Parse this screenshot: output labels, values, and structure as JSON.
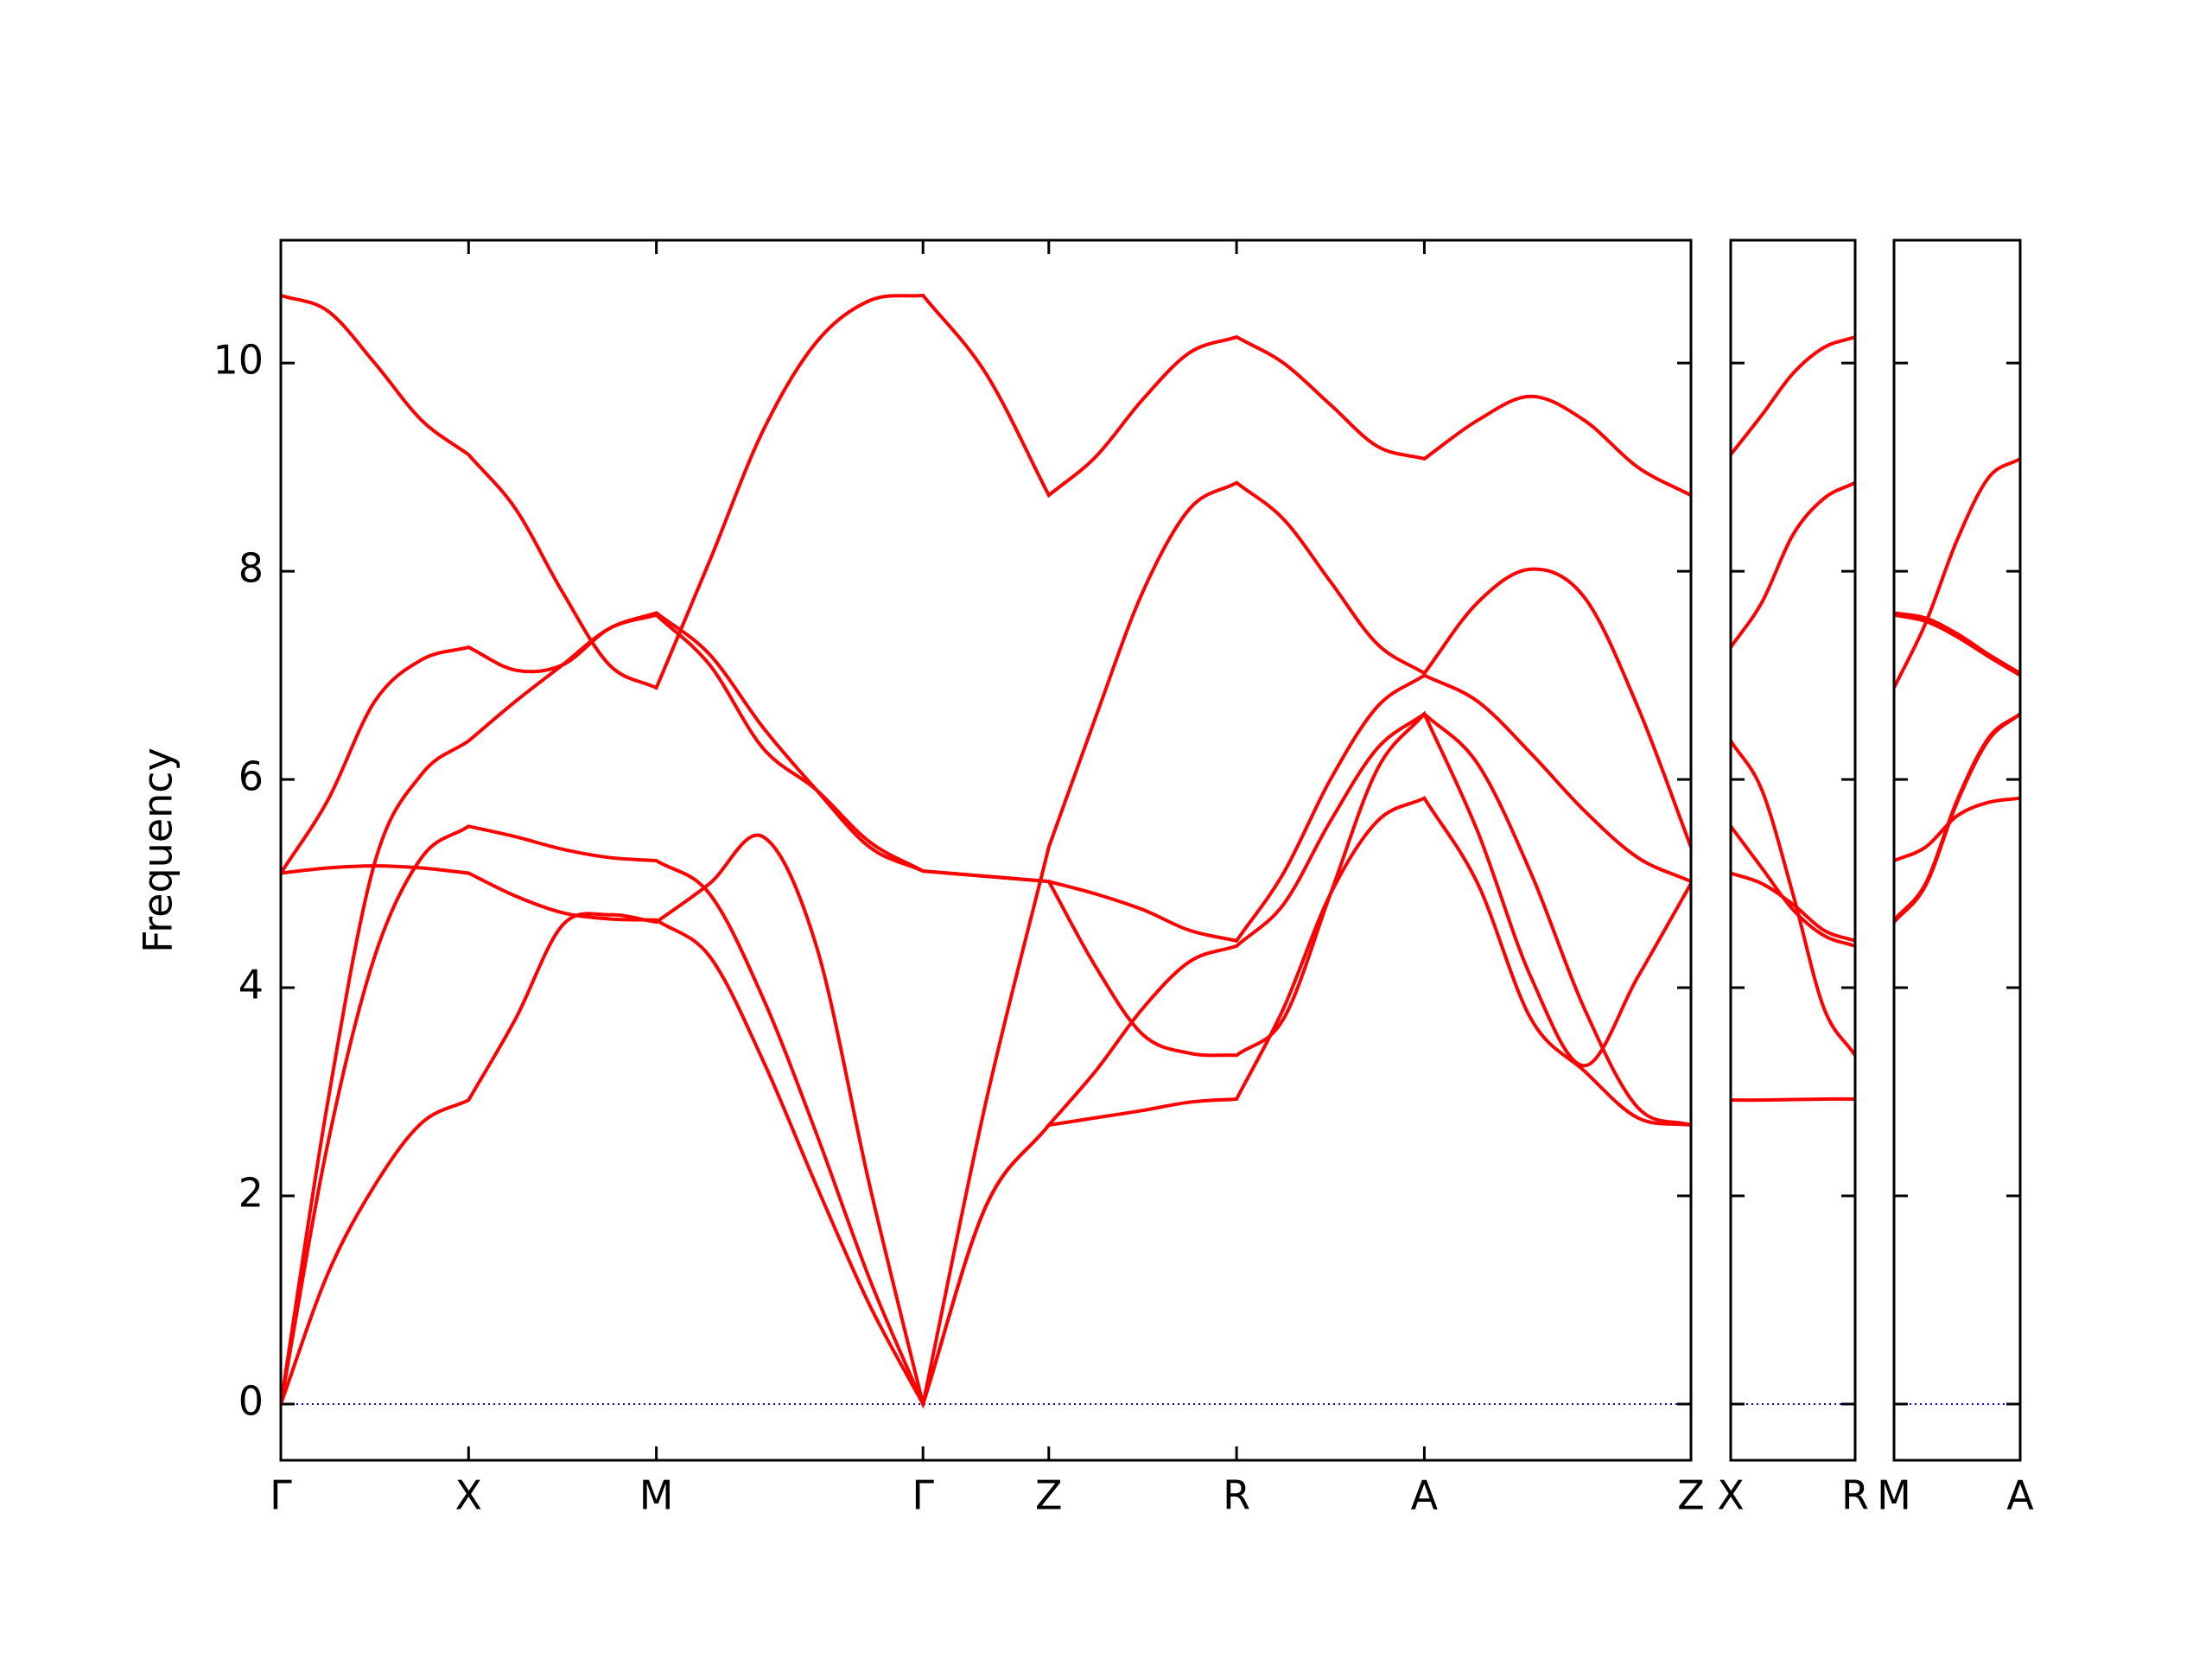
{
  "chart_data": [
    {
      "type": "line",
      "ylabel": "Frequency",
      "ytick_labels": true,
      "zero_line_color": "#0000ff",
      "x": [
        0,
        0.25,
        0.5,
        0.75,
        1.0,
        1.25,
        1.5,
        1.75,
        2.0,
        2.284,
        2.568,
        2.852,
        3.136,
        3.42,
        3.755,
        4.09,
        4.34,
        4.59,
        4.84,
        5.09,
        5.34,
        5.59,
        5.84,
        6.09,
        6.374,
        6.658,
        6.942,
        7.226,
        7.51
      ],
      "xlim": [
        0,
        7.51
      ],
      "xticks": [
        {
          "value": 0,
          "label": "Γ"
        },
        {
          "value": 1.0,
          "label": "X"
        },
        {
          "value": 2.0,
          "label": "M"
        },
        {
          "value": 3.42,
          "label": "Γ"
        },
        {
          "value": 4.09,
          "label": "Z"
        },
        {
          "value": 5.09,
          "label": "R"
        },
        {
          "value": 6.09,
          "label": "A"
        },
        {
          "value": 7.51,
          "label": "Z"
        }
      ],
      "ylim": [
        -0.54,
        11.18
      ],
      "yticks": [
        0,
        2,
        4,
        6,
        8,
        10
      ],
      "series": [
        {
          "color": "#ff0000",
          "values": [
            0,
            1.25,
            2.1,
            2.7,
            2.92,
            3.7,
            4.6,
            4.7,
            4.63,
            5.0,
            5.45,
            4.4,
            2.1,
            0,
            2.9,
            5.35,
            6.6,
            7.8,
            8.6,
            8.85,
            8.5,
            7.9,
            7.3,
            7.02,
            7.7,
            8.02,
            7.75,
            6.7,
            5.35
          ]
        },
        {
          "color": "#ff0000",
          "values": [
            0,
            2.5,
            4.3,
            5.25,
            5.55,
            5.45,
            5.33,
            5.25,
            5.22,
            4.9,
            3.9,
            2.6,
            1.2,
            0,
            1.9,
            2.68,
            3.2,
            3.8,
            4.25,
            4.4,
            4.8,
            5.6,
            6.3,
            6.63,
            6.15,
            5.1,
            3.8,
            2.85,
            2.68
          ]
        },
        {
          "color": "#ff0000",
          "values": [
            0,
            2.9,
            5.2,
            6.05,
            6.37,
            6.75,
            7.1,
            7.45,
            7.58,
            7.1,
            6.3,
            5.9,
            5.4,
            5.12,
            5.07,
            5.02,
            4.2,
            3.55,
            3.37,
            3.35,
            3.7,
            4.9,
            6.1,
            6.63,
            5.5,
            4.1,
            3.25,
            4.1,
            5.0
          ]
        },
        {
          "color": "#ff0000",
          "values": [
            5.1,
            5.15,
            5.17,
            5.15,
            5.1,
            4.88,
            4.72,
            4.66,
            4.65,
            4.3,
            3.3,
            2.1,
            0.95,
            0,
            1.9,
            2.68,
            2.75,
            2.82,
            2.9,
            2.93,
            3.8,
            4.9,
            5.6,
            5.82,
            5.0,
            3.7,
            3.2,
            2.75,
            2.68
          ]
        },
        {
          "color": "#ff0000",
          "values": [
            5.1,
            5.8,
            6.75,
            7.15,
            7.27,
            7.05,
            7.1,
            7.45,
            7.6,
            7.2,
            6.5,
            5.9,
            5.35,
            5.12,
            5.07,
            5.02,
            4.9,
            4.75,
            4.55,
            4.45,
            5.1,
            6.0,
            6.7,
            7.0,
            6.75,
            6.25,
            5.7,
            5.25,
            5.02
          ]
        },
        {
          "color": "#ff0000",
          "values": [
            10.65,
            10.5,
            10.0,
            9.45,
            9.12,
            8.6,
            7.8,
            7.1,
            6.88,
            8.1,
            9.35,
            10.2,
            10.6,
            10.65,
            9.9,
            8.73,
            9.1,
            9.65,
            10.1,
            10.25,
            10.0,
            9.6,
            9.2,
            9.08,
            9.45,
            9.68,
            9.45,
            9.0,
            8.73
          ]
        }
      ]
    },
    {
      "type": "line",
      "ytick_labels": false,
      "zero_line_color": "#0000ff",
      "x": [
        0,
        0.1675,
        0.335,
        0.5025,
        0.67
      ],
      "xlim": [
        0,
        0.67
      ],
      "xticks": [
        {
          "value": 0,
          "label": "X"
        },
        {
          "value": 0.67,
          "label": "R"
        }
      ],
      "ylim": [
        -0.54,
        11.18
      ],
      "yticks": [
        0,
        2,
        4,
        6,
        8,
        10
      ],
      "series": [
        {
          "color": "#ff0000",
          "values": [
            9.12,
            9.5,
            9.9,
            10.15,
            10.25
          ]
        },
        {
          "color": "#ff0000",
          "values": [
            7.27,
            7.7,
            8.35,
            8.7,
            8.85
          ]
        },
        {
          "color": "#ff0000",
          "values": [
            6.37,
            5.9,
            4.9,
            3.8,
            3.35
          ]
        },
        {
          "color": "#ff0000",
          "values": [
            5.55,
            5.15,
            4.75,
            4.5,
            4.4
          ]
        },
        {
          "color": "#ff0000",
          "values": [
            5.1,
            5.0,
            4.8,
            4.55,
            4.45
          ]
        },
        {
          "color": "#ff0000",
          "values": [
            2.92,
            2.92,
            2.925,
            2.93,
            2.93
          ]
        }
      ]
    },
    {
      "type": "line",
      "ytick_labels": false,
      "zero_line_color": "#0000ff",
      "x": [
        0,
        0.1675,
        0.335,
        0.5025,
        0.67
      ],
      "xlim": [
        0,
        0.67
      ],
      "xticks": [
        {
          "value": 0,
          "label": "M"
        },
        {
          "value": 0.67,
          "label": "A"
        }
      ],
      "ylim": [
        -0.54,
        11.18
      ],
      "yticks": [
        0,
        2,
        4,
        6,
        8,
        10
      ],
      "series": [
        {
          "color": "#ff0000",
          "values": [
            6.88,
            7.5,
            8.3,
            8.9,
            9.08
          ]
        },
        {
          "color": "#ff0000",
          "values": [
            7.6,
            7.55,
            7.4,
            7.2,
            7.02
          ]
        },
        {
          "color": "#ff0000",
          "values": [
            7.58,
            7.52,
            7.37,
            7.18,
            7.0
          ]
        },
        {
          "color": "#ff0000",
          "values": [
            5.22,
            5.35,
            5.65,
            5.78,
            5.82
          ]
        },
        {
          "color": "#ff0000",
          "values": [
            4.65,
            5.0,
            5.8,
            6.4,
            6.63
          ]
        },
        {
          "color": "#ff0000",
          "values": [
            4.63,
            4.98,
            5.78,
            6.38,
            6.63
          ]
        }
      ]
    }
  ]
}
